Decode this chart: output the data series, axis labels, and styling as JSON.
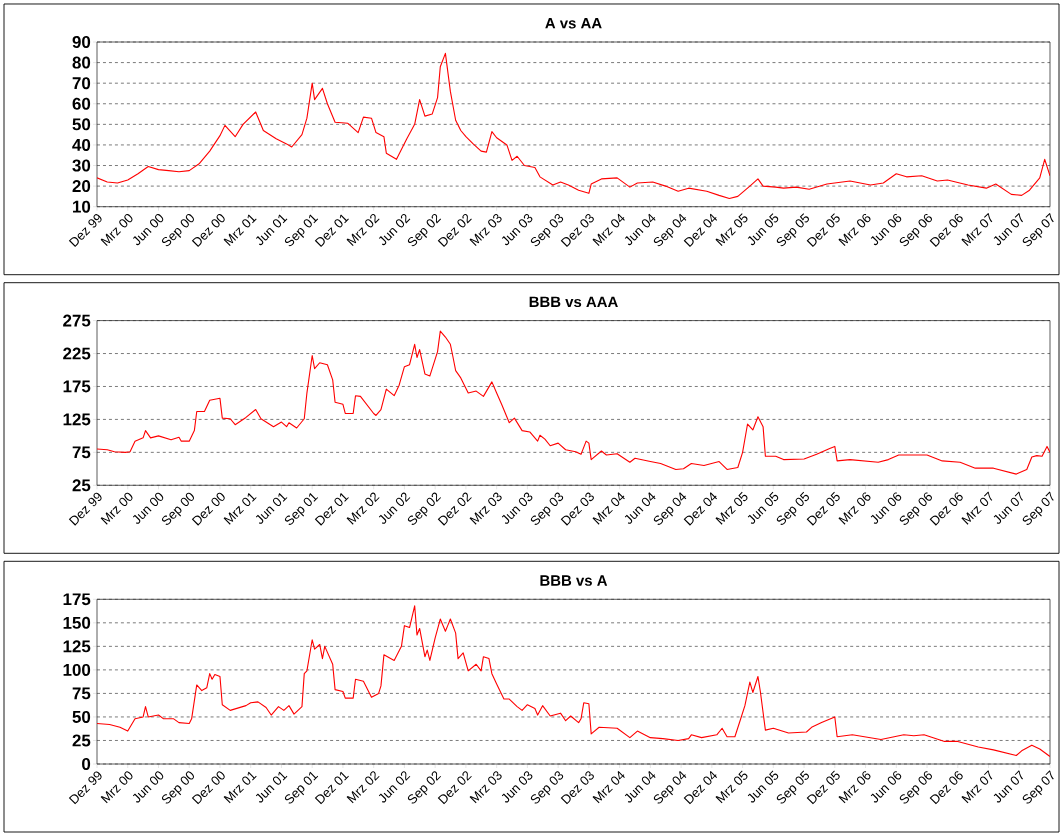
{
  "chart_data": [
    {
      "type": "line",
      "title": "A vs AA",
      "color": "#ff0000",
      "line_style": "solid",
      "marker": "none",
      "grid": "y",
      "xlim": [
        "1999-12-01",
        "2007-09-01"
      ],
      "ylim": [
        10,
        90
      ],
      "yticks": [
        10,
        20,
        30,
        40,
        50,
        60,
        70,
        80,
        90
      ],
      "xticks": [
        {
          "value": "1999-12-01",
          "label": "Dez 99"
        },
        {
          "value": "2000-03-01",
          "label": "Mrz 00"
        },
        {
          "value": "2000-06-01",
          "label": "Jun 00"
        },
        {
          "value": "2000-09-01",
          "label": "Sep 00"
        },
        {
          "value": "2000-12-01",
          "label": "Dez 00"
        },
        {
          "value": "2001-03-01",
          "label": "Mrz 01"
        },
        {
          "value": "2001-06-01",
          "label": "Jun 01"
        },
        {
          "value": "2001-09-01",
          "label": "Sep 01"
        },
        {
          "value": "2001-12-01",
          "label": "Dez 01"
        },
        {
          "value": "2002-03-01",
          "label": "Mrz 02"
        },
        {
          "value": "2002-06-01",
          "label": "Jun 02"
        },
        {
          "value": "2002-09-01",
          "label": "Sep 02"
        },
        {
          "value": "2002-12-01",
          "label": "Dez 02"
        },
        {
          "value": "2003-03-01",
          "label": "Mrz 03"
        },
        {
          "value": "2003-06-01",
          "label": "Jun 03"
        },
        {
          "value": "2003-09-01",
          "label": "Sep 03"
        },
        {
          "value": "2003-12-01",
          "label": "Dez 03"
        },
        {
          "value": "2004-03-01",
          "label": "Mrz 04"
        },
        {
          "value": "2004-06-01",
          "label": "Jun 04"
        },
        {
          "value": "2004-09-01",
          "label": "Sep 04"
        },
        {
          "value": "2004-12-01",
          "label": "Dez 04"
        },
        {
          "value": "2005-03-01",
          "label": "Mrz 05"
        },
        {
          "value": "2005-06-01",
          "label": "Jun 05"
        },
        {
          "value": "2005-09-01",
          "label": "Sep 05"
        },
        {
          "value": "2005-12-01",
          "label": "Dez 05"
        },
        {
          "value": "2006-03-01",
          "label": "Mrz 06"
        },
        {
          "value": "2006-06-01",
          "label": "Jun 06"
        },
        {
          "value": "2006-09-01",
          "label": "Sep 06"
        },
        {
          "value": "2006-12-01",
          "label": "Dez 06"
        },
        {
          "value": "2007-03-01",
          "label": "Mrz 07"
        },
        {
          "value": "2007-06-01",
          "label": "Jun 07"
        },
        {
          "value": "2007-09-01",
          "label": "Sep 07"
        }
      ],
      "x": [
        "1999-12-01",
        "2000-01-01",
        "2000-02-01",
        "2000-03-01",
        "2000-04-01",
        "2000-05-01",
        "2000-06-01",
        "2000-07-01",
        "2000-08-01",
        "2000-09-01",
        "2000-10-01",
        "2000-11-01",
        "2000-12-01",
        "2000-12-16",
        "2001-01-16",
        "2001-02-08",
        "2001-03-16",
        "2001-04-08",
        "2001-05-16",
        "2001-06-16",
        "2001-07-01",
        "2001-08-01",
        "2001-08-16",
        "2001-09-01",
        "2001-09-08",
        "2001-10-01",
        "2001-10-16",
        "2001-11-08",
        "2001-12-16",
        "2002-01-16",
        "2002-02-01",
        "2002-02-23",
        "2002-03-08",
        "2002-04-01",
        "2002-04-08",
        "2002-05-08",
        "2002-06-08",
        "2002-07-01",
        "2002-07-16",
        "2002-08-01",
        "2002-08-23",
        "2002-09-08",
        "2002-09-16",
        "2002-10-01",
        "2002-10-16",
        "2002-11-01",
        "2002-11-16",
        "2002-12-01",
        "2002-12-23",
        "2003-01-16",
        "2003-02-01",
        "2003-02-16",
        "2003-03-01",
        "2003-04-01",
        "2003-04-16",
        "2003-05-01",
        "2003-05-23",
        "2003-06-23",
        "2003-07-08",
        "2003-08-16",
        "2003-09-08",
        "2003-10-01",
        "2003-11-01",
        "2003-12-01",
        "2003-12-08",
        "2004-01-08",
        "2004-02-23",
        "2004-04-01",
        "2004-04-23",
        "2004-06-08",
        "2004-07-16",
        "2004-08-23",
        "2004-09-23",
        "2004-11-16",
        "2004-12-23",
        "2005-01-23",
        "2005-02-16",
        "2005-03-23",
        "2005-04-16",
        "2005-05-01",
        "2005-06-08",
        "2005-07-01",
        "2005-08-08",
        "2005-09-16",
        "2005-11-08",
        "2006-01-16",
        "2006-03-16",
        "2006-04-23",
        "2006-06-01",
        "2006-07-01",
        "2006-08-16",
        "2006-10-01",
        "2006-11-01",
        "2007-01-01",
        "2007-02-23",
        "2007-03-23",
        "2007-05-08",
        "2007-06-08",
        "2007-07-01",
        "2007-08-01",
        "2007-08-16",
        "2007-09-01"
      ],
      "values": [
        24,
        22,
        21.5,
        23,
        26,
        29.5,
        28,
        27.5,
        27,
        27.5,
        31,
        37,
        44.5,
        49.5,
        44,
        50,
        56,
        47,
        43,
        40.5,
        39,
        45,
        53,
        70,
        62,
        67.5,
        60,
        51,
        50.5,
        46,
        53.5,
        53,
        46,
        44,
        36,
        33,
        43,
        50,
        62,
        54,
        55,
        63,
        78,
        84.5,
        66,
        52,
        47,
        44,
        40.5,
        37,
        36.5,
        46.5,
        43.5,
        40,
        32.5,
        34.5,
        30,
        29,
        24.5,
        20.5,
        22,
        20.5,
        18,
        16.5,
        21,
        23.5,
        24,
        19.5,
        21.5,
        22,
        20,
        17.5,
        19,
        17.5,
        15.5,
        14,
        15,
        20,
        23.5,
        20,
        19.5,
        19,
        19.5,
        18.5,
        21,
        22.5,
        20.5,
        21.5,
        26,
        24.5,
        25,
        22.5,
        23,
        20.5,
        19,
        21,
        16,
        15.5,
        18,
        24,
        33,
        25
      ]
    },
    {
      "type": "line",
      "title": "BBB vs AAA",
      "color": "#ff0000",
      "line_style": "solid",
      "marker": "none",
      "grid": "y",
      "xlim": [
        "1999-12-01",
        "2007-09-01"
      ],
      "ylim": [
        25,
        275
      ],
      "yticks": [
        25,
        75,
        125,
        175,
        225,
        275
      ],
      "xticks": [
        {
          "value": "1999-12-01",
          "label": "Dez 99"
        },
        {
          "value": "2000-03-01",
          "label": "Mrz 00"
        },
        {
          "value": "2000-06-01",
          "label": "Jun 00"
        },
        {
          "value": "2000-09-01",
          "label": "Sep 00"
        },
        {
          "value": "2000-12-01",
          "label": "Dez 00"
        },
        {
          "value": "2001-03-01",
          "label": "Mrz 01"
        },
        {
          "value": "2001-06-01",
          "label": "Jun 01"
        },
        {
          "value": "2001-09-01",
          "label": "Sep 01"
        },
        {
          "value": "2001-12-01",
          "label": "Dez 01"
        },
        {
          "value": "2002-03-01",
          "label": "Mrz 02"
        },
        {
          "value": "2002-06-01",
          "label": "Jun 02"
        },
        {
          "value": "2002-09-01",
          "label": "Sep 02"
        },
        {
          "value": "2002-12-01",
          "label": "Dez 02"
        },
        {
          "value": "2003-03-01",
          "label": "Mrz 03"
        },
        {
          "value": "2003-06-01",
          "label": "Jun 03"
        },
        {
          "value": "2003-09-01",
          "label": "Sep 03"
        },
        {
          "value": "2003-12-01",
          "label": "Dez 03"
        },
        {
          "value": "2004-03-01",
          "label": "Mrz 04"
        },
        {
          "value": "2004-06-01",
          "label": "Jun 04"
        },
        {
          "value": "2004-09-01",
          "label": "Sep 04"
        },
        {
          "value": "2004-12-01",
          "label": "Dez 04"
        },
        {
          "value": "2005-03-01",
          "label": "Mrz 05"
        },
        {
          "value": "2005-06-01",
          "label": "Jun 05"
        },
        {
          "value": "2005-09-01",
          "label": "Sep 05"
        },
        {
          "value": "2005-12-01",
          "label": "Dez 05"
        },
        {
          "value": "2006-03-01",
          "label": "Mrz 06"
        },
        {
          "value": "2006-06-01",
          "label": "Jun 06"
        },
        {
          "value": "2006-09-01",
          "label": "Sep 06"
        },
        {
          "value": "2006-12-01",
          "label": "Dez 06"
        },
        {
          "value": "2007-03-01",
          "label": "Mrz 07"
        },
        {
          "value": "2007-06-01",
          "label": "Jun 07"
        },
        {
          "value": "2007-09-01",
          "label": "Sep 07"
        }
      ],
      "x": [
        "1999-12-01",
        "2000-01-01",
        "2000-01-23",
        "2000-02-23",
        "2000-03-08",
        "2000-03-23",
        "2000-04-16",
        "2000-04-23",
        "2000-05-08",
        "2000-06-01",
        "2000-07-08",
        "2000-08-01",
        "2000-08-08",
        "2000-09-01",
        "2000-09-16",
        "2000-09-23",
        "2000-10-16",
        "2000-11-01",
        "2000-12-01",
        "2000-12-08",
        "2001-01-01",
        "2001-01-16",
        "2001-02-16",
        "2001-03-16",
        "2001-04-01",
        "2001-05-08",
        "2001-06-01",
        "2001-06-16",
        "2001-06-23",
        "2001-07-16",
        "2001-08-08",
        "2001-08-16",
        "2001-09-01",
        "2001-09-08",
        "2001-09-23",
        "2001-10-16",
        "2001-11-01",
        "2001-11-08",
        "2001-12-01",
        "2001-12-08",
        "2002-01-01",
        "2002-01-08",
        "2002-01-23",
        "2002-03-01",
        "2002-03-08",
        "2002-03-23",
        "2002-04-08",
        "2002-05-01",
        "2002-05-16",
        "2002-06-01",
        "2002-06-16",
        "2002-07-01",
        "2002-07-08",
        "2002-07-16",
        "2002-08-01",
        "2002-08-16",
        "2002-09-08",
        "2002-09-16",
        "2002-10-01",
        "2002-10-16",
        "2002-10-23",
        "2002-11-01",
        "2002-11-16",
        "2002-12-08",
        "2003-01-01",
        "2003-01-23",
        "2003-02-16",
        "2003-03-01",
        "2003-03-16",
        "2003-04-08",
        "2003-04-23",
        "2003-05-16",
        "2003-06-08",
        "2003-07-01",
        "2003-07-08",
        "2003-07-23",
        "2003-08-08",
        "2003-09-01",
        "2003-09-23",
        "2003-10-23",
        "2003-11-08",
        "2003-11-23",
        "2003-12-01",
        "2003-12-08",
        "2004-01-08",
        "2004-01-23",
        "2004-02-23",
        "2004-04-01",
        "2004-04-16",
        "2004-06-01",
        "2004-07-01",
        "2004-08-16",
        "2004-09-08",
        "2004-10-01",
        "2004-11-08",
        "2004-12-23",
        "2005-01-16",
        "2005-02-16",
        "2005-03-01",
        "2005-03-16",
        "2005-04-01",
        "2005-04-16",
        "2005-05-01",
        "2005-05-08",
        "2005-06-08",
        "2005-07-01",
        "2005-09-01",
        "2005-10-08",
        "2005-11-16",
        "2005-12-01",
        "2005-12-08",
        "2006-01-16",
        "2006-04-08",
        "2006-05-08",
        "2006-06-08",
        "2006-09-01",
        "2006-10-16",
        "2006-12-08",
        "2007-01-23",
        "2007-03-16",
        "2007-05-23",
        "2007-06-23",
        "2007-07-08",
        "2007-07-23",
        "2007-08-08",
        "2007-08-23",
        "2007-09-01"
      ],
      "values": [
        80,
        79,
        76,
        75,
        76,
        92,
        97,
        108,
        97,
        100,
        94,
        98,
        92,
        92,
        108,
        137,
        137,
        154,
        157,
        127,
        126,
        117,
        128,
        140,
        126,
        114,
        121,
        114,
        120,
        112,
        126,
        165,
        222,
        202,
        211,
        208,
        185,
        151,
        148,
        134,
        134,
        161,
        160,
        134,
        131,
        140,
        171,
        161,
        177,
        205,
        208,
        239,
        219,
        231,
        194,
        191,
        228,
        259,
        250,
        239,
        222,
        199,
        188,
        165,
        168,
        160,
        182,
        165,
        148,
        120,
        127,
        108,
        106,
        92,
        101,
        95,
        85,
        89,
        79,
        76,
        72,
        92,
        89,
        64,
        77,
        71,
        73,
        60,
        66,
        61,
        58,
        49,
        50,
        58,
        55,
        61,
        49,
        52,
        75,
        118,
        109,
        129,
        114,
        69,
        69,
        64,
        65,
        72,
        81,
        84,
        62,
        64,
        60,
        64,
        71,
        71,
        62,
        60,
        51,
        51,
        42,
        49,
        68,
        70,
        69,
        84,
        75
      ]
    },
    {
      "type": "line",
      "title": "BBB vs A",
      "color": "#ff0000",
      "line_style": "solid",
      "marker": "none",
      "grid": "y",
      "xlim": [
        "1999-12-01",
        "2007-09-01"
      ],
      "ylim": [
        0,
        175
      ],
      "yticks": [
        0,
        25,
        50,
        75,
        100,
        125,
        150,
        175
      ],
      "xticks": [
        {
          "value": "1999-12-01",
          "label": "Dez 99"
        },
        {
          "value": "2000-03-01",
          "label": "Mrz 00"
        },
        {
          "value": "2000-06-01",
          "label": "Jun 00"
        },
        {
          "value": "2000-09-01",
          "label": "Sep 00"
        },
        {
          "value": "2000-12-01",
          "label": "Dez 00"
        },
        {
          "value": "2001-03-01",
          "label": "Mrz 01"
        },
        {
          "value": "2001-06-01",
          "label": "Jun 01"
        },
        {
          "value": "2001-09-01",
          "label": "Sep 01"
        },
        {
          "value": "2001-12-01",
          "label": "Dez 01"
        },
        {
          "value": "2002-03-01",
          "label": "Mrz 02"
        },
        {
          "value": "2002-06-01",
          "label": "Jun 02"
        },
        {
          "value": "2002-09-01",
          "label": "Sep 02"
        },
        {
          "value": "2002-12-01",
          "label": "Dez 02"
        },
        {
          "value": "2003-03-01",
          "label": "Mrz 03"
        },
        {
          "value": "2003-06-01",
          "label": "Jun 03"
        },
        {
          "value": "2003-09-01",
          "label": "Sep 03"
        },
        {
          "value": "2003-12-01",
          "label": "Dez 03"
        },
        {
          "value": "2004-03-01",
          "label": "Mrz 04"
        },
        {
          "value": "2004-06-01",
          "label": "Jun 04"
        },
        {
          "value": "2004-09-01",
          "label": "Sep 04"
        },
        {
          "value": "2004-12-01",
          "label": "Dez 04"
        },
        {
          "value": "2005-03-01",
          "label": "Mrz 05"
        },
        {
          "value": "2005-06-01",
          "label": "Jun 05"
        },
        {
          "value": "2005-09-01",
          "label": "Sep 05"
        },
        {
          "value": "2005-12-01",
          "label": "Dez 05"
        },
        {
          "value": "2006-03-01",
          "label": "Mrz 06"
        },
        {
          "value": "2006-06-01",
          "label": "Jun 06"
        },
        {
          "value": "2006-09-01",
          "label": "Sep 06"
        },
        {
          "value": "2006-12-01",
          "label": "Dez 06"
        },
        {
          "value": "2007-03-01",
          "label": "Mrz 07"
        },
        {
          "value": "2007-06-01",
          "label": "Jun 07"
        },
        {
          "value": "2007-09-01",
          "label": "Sep 07"
        }
      ],
      "x": [
        "1999-12-01",
        "2000-01-08",
        "2000-02-08",
        "2000-03-01",
        "2000-03-23",
        "2000-04-16",
        "2000-04-23",
        "2000-05-01",
        "2000-06-01",
        "2000-06-16",
        "2000-07-16",
        "2000-08-01",
        "2000-09-01",
        "2000-09-08",
        "2000-09-23",
        "2000-10-08",
        "2000-10-23",
        "2000-11-01",
        "2000-11-08",
        "2000-11-16",
        "2000-12-01",
        "2000-12-08",
        "2001-01-01",
        "2001-02-16",
        "2001-03-01",
        "2001-03-23",
        "2001-04-16",
        "2001-05-01",
        "2001-05-23",
        "2001-06-08",
        "2001-06-23",
        "2001-07-08",
        "2001-08-01",
        "2001-08-08",
        "2001-08-16",
        "2001-09-01",
        "2001-09-08",
        "2001-09-23",
        "2001-10-01",
        "2001-10-08",
        "2001-11-01",
        "2001-11-08",
        "2001-12-01",
        "2001-12-08",
        "2002-01-01",
        "2002-01-08",
        "2002-02-01",
        "2002-02-23",
        "2002-03-16",
        "2002-03-23",
        "2002-04-01",
        "2002-05-01",
        "2002-05-23",
        "2002-06-01",
        "2002-06-16",
        "2002-07-01",
        "2002-07-08",
        "2002-07-16",
        "2002-08-01",
        "2002-08-08",
        "2002-08-16",
        "2002-09-01",
        "2002-09-16",
        "2002-10-01",
        "2002-10-08",
        "2002-10-16",
        "2002-11-01",
        "2002-11-08",
        "2002-11-23",
        "2002-12-08",
        "2003-01-01",
        "2003-01-16",
        "2003-01-23",
        "2003-02-08",
        "2003-02-16",
        "2003-03-01",
        "2003-03-23",
        "2003-04-08",
        "2003-05-01",
        "2003-05-16",
        "2003-06-01",
        "2003-06-23",
        "2003-07-01",
        "2003-07-16",
        "2003-08-08",
        "2003-09-08",
        "2003-09-23",
        "2003-10-08",
        "2003-11-01",
        "2003-11-08",
        "2003-11-16",
        "2003-12-01",
        "2003-12-08",
        "2004-01-01",
        "2004-02-23",
        "2004-04-01",
        "2004-04-23",
        "2004-06-01",
        "2004-07-08",
        "2004-08-23",
        "2004-09-23",
        "2004-10-01",
        "2004-11-01",
        "2004-12-16",
        "2005-01-01",
        "2005-01-16",
        "2005-02-08",
        "2005-02-23",
        "2005-03-08",
        "2005-03-23",
        "2005-04-01",
        "2005-04-16",
        "2005-04-23",
        "2005-05-08",
        "2005-06-01",
        "2005-07-16",
        "2005-09-08",
        "2005-09-23",
        "2005-10-23",
        "2005-12-01",
        "2005-12-08",
        "2006-01-23",
        "2006-04-16",
        "2006-06-23",
        "2006-07-23",
        "2006-08-23",
        "2006-10-23",
        "2006-12-01",
        "2007-02-01",
        "2007-03-16",
        "2007-05-23",
        "2007-06-08",
        "2007-07-08",
        "2007-08-01",
        "2007-09-01"
      ],
      "values": [
        43,
        42,
        39,
        35,
        48,
        50,
        61,
        50,
        52,
        48,
        48,
        44,
        43,
        48,
        84,
        78,
        81,
        96,
        90,
        95,
        93,
        63,
        57,
        62,
        65,
        66,
        60,
        52,
        61,
        57,
        62,
        53,
        61,
        96,
        99,
        132,
        122,
        127,
        112,
        125,
        106,
        79,
        77,
        70,
        70,
        90,
        88,
        71,
        75,
        83,
        116,
        110,
        125,
        147,
        145,
        168,
        137,
        144,
        114,
        121,
        110,
        134,
        154,
        141,
        147,
        154,
        139,
        112,
        118,
        99,
        106,
        99,
        114,
        112,
        96,
        85,
        69,
        69,
        61,
        57,
        63,
        59,
        52,
        62,
        51,
        54,
        46,
        51,
        44,
        48,
        65,
        64,
        32,
        39,
        38,
        28,
        35,
        28,
        27,
        25,
        27,
        31,
        28,
        31,
        38,
        29,
        29,
        47,
        62,
        87,
        76,
        93,
        77,
        36,
        38,
        33,
        34,
        39,
        44,
        50,
        29,
        31,
        26,
        31,
        30,
        31,
        24,
        24,
        18,
        15,
        9,
        14,
        20,
        16,
        8
      ]
    }
  ]
}
